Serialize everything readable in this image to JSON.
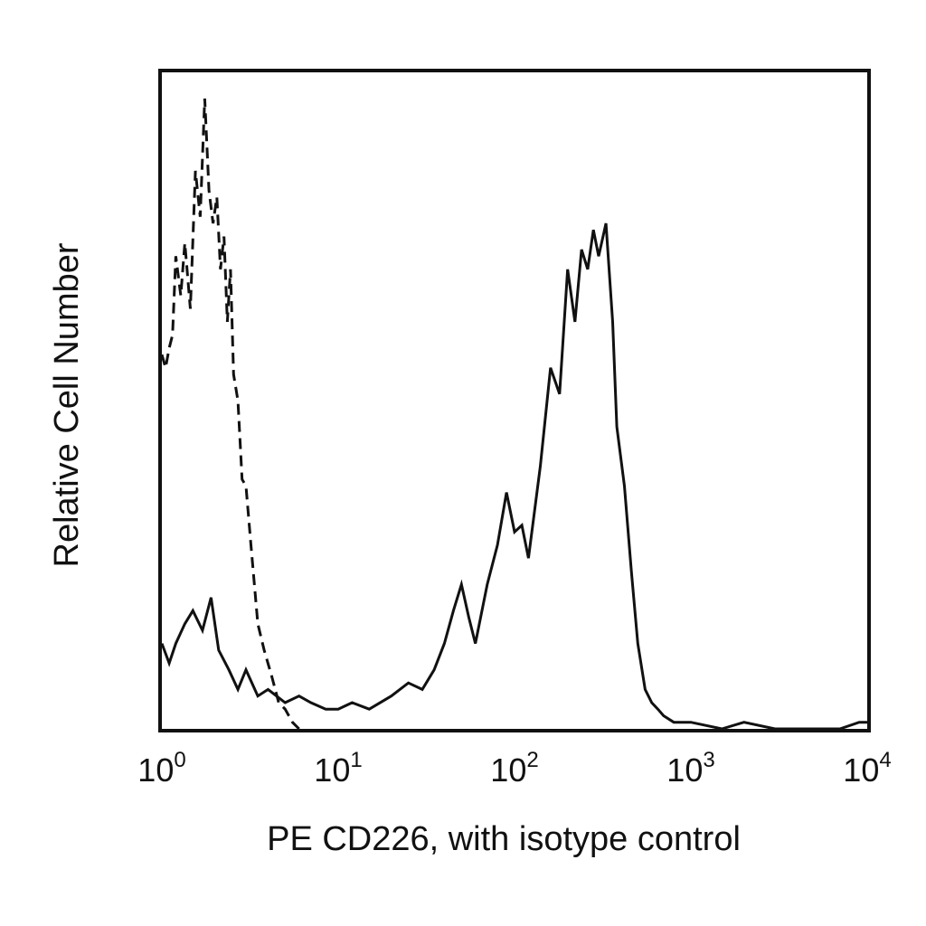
{
  "chart_data": {
    "type": "line",
    "title": "",
    "xlabel": "PE CD226, with isotype control",
    "ylabel": "Relative Cell Number",
    "x_scale": "log",
    "xlim": [
      1,
      10000
    ],
    "ylim": [
      0,
      100
    ],
    "grid": false,
    "legend": "none",
    "x_ticks": [
      {
        "base": "10",
        "exp": "0",
        "value": 1
      },
      {
        "base": "10",
        "exp": "1",
        "value": 10
      },
      {
        "base": "10",
        "exp": "2",
        "value": 100
      },
      {
        "base": "10",
        "exp": "3",
        "value": 1000
      },
      {
        "base": "10",
        "exp": "4",
        "value": 10000
      }
    ],
    "series": [
      {
        "style": "dashed",
        "color": "#111111",
        "x": [
          1.0,
          1.05,
          1.1,
          1.15,
          1.2,
          1.28,
          1.35,
          1.45,
          1.55,
          1.65,
          1.75,
          1.85,
          1.95,
          2.05,
          2.15,
          2.25,
          2.35,
          2.45,
          2.55,
          2.7,
          2.85,
          3.0,
          3.2,
          3.5,
          3.8,
          4.2,
          4.6,
          5.0,
          5.5,
          6.0
        ],
        "y": [
          57,
          55,
          58,
          60,
          72,
          66,
          74,
          64,
          85,
          78,
          96,
          82,
          77,
          81,
          70,
          75,
          62,
          70,
          54,
          50,
          38,
          37,
          28,
          16,
          12,
          8,
          4,
          3,
          1,
          0
        ]
      },
      {
        "style": "solid",
        "color": "#111111",
        "x": [
          1.0,
          1.1,
          1.2,
          1.35,
          1.5,
          1.7,
          1.9,
          2.1,
          2.4,
          2.7,
          3.0,
          3.5,
          4.0,
          5.0,
          6.0,
          7.0,
          8.5,
          10,
          12,
          15,
          20,
          25,
          30,
          35,
          40,
          45,
          50,
          55,
          60,
          70,
          80,
          90,
          100,
          110,
          120,
          140,
          160,
          180,
          200,
          220,
          240,
          260,
          280,
          300,
          330,
          360,
          380,
          420,
          460,
          500,
          550,
          600,
          650,
          700,
          800,
          1000,
          1500,
          2000,
          3000,
          5000,
          7000,
          9000,
          10000
        ],
        "y": [
          13,
          10,
          13,
          16,
          18,
          15,
          20,
          12,
          9,
          6,
          9,
          5,
          6,
          4,
          5,
          4,
          3,
          3,
          4,
          3,
          5,
          7,
          6,
          9,
          13,
          18,
          22,
          17,
          13,
          22,
          28,
          36,
          30,
          31,
          26,
          40,
          55,
          51,
          70,
          62,
          73,
          70,
          76,
          72,
          77,
          62,
          46,
          37,
          24,
          13,
          6,
          4,
          3,
          2,
          1,
          1,
          0,
          1,
          0,
          0,
          0,
          1,
          1
        ]
      }
    ]
  }
}
